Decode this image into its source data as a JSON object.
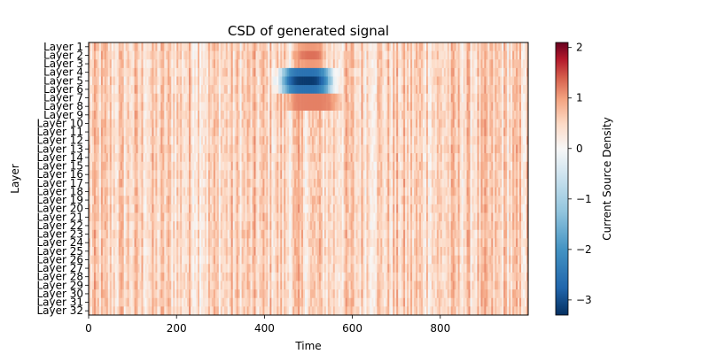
{
  "chart_data": {
    "type": "heatmap",
    "title": "CSD of generated signal",
    "xlabel": "Time",
    "ylabel": "Layer",
    "xlim": [
      0,
      1000
    ],
    "xticks": [
      0,
      200,
      400,
      600,
      800
    ],
    "layers": [
      "Layer 1",
      "Layer 2",
      "Layer 3",
      "Layer 4",
      "Layer 5",
      "Layer 6",
      "Layer 7",
      "Layer 8",
      "Layer 9",
      "Layer 10",
      "Layer 11",
      "Layer 12",
      "Layer 13",
      "Layer 14",
      "Layer 15",
      "Layer 16",
      "Layer 17",
      "Layer 18",
      "Layer 19",
      "Layer 20",
      "Layer 21",
      "Layer 22",
      "Layer 23",
      "Layer 24",
      "Layer 25",
      "Layer 26",
      "Layer 27",
      "Layer 28",
      "Layer 29",
      "Layer 30",
      "Layer 31",
      "Layer 32"
    ],
    "colorbar": {
      "label": "Current Source Density",
      "range": [
        -3.3,
        2.1
      ],
      "ticks": [
        -3,
        -2,
        -1,
        0,
        1,
        2
      ],
      "colormap": "RdBu_r"
    },
    "background_level": 0.5,
    "features": [
      {
        "kind": "sink",
        "layers": [
          4,
          5,
          6
        ],
        "time": [
          430,
          560
        ],
        "peak": -3.2
      },
      {
        "kind": "source",
        "layers": [
          7,
          8
        ],
        "time": [
          440,
          580
        ],
        "peak": 1.5
      },
      {
        "kind": "source",
        "layers": [
          1,
          2,
          3
        ],
        "time": [
          470,
          540
        ],
        "peak": 1.3
      }
    ],
    "grid": false
  }
}
